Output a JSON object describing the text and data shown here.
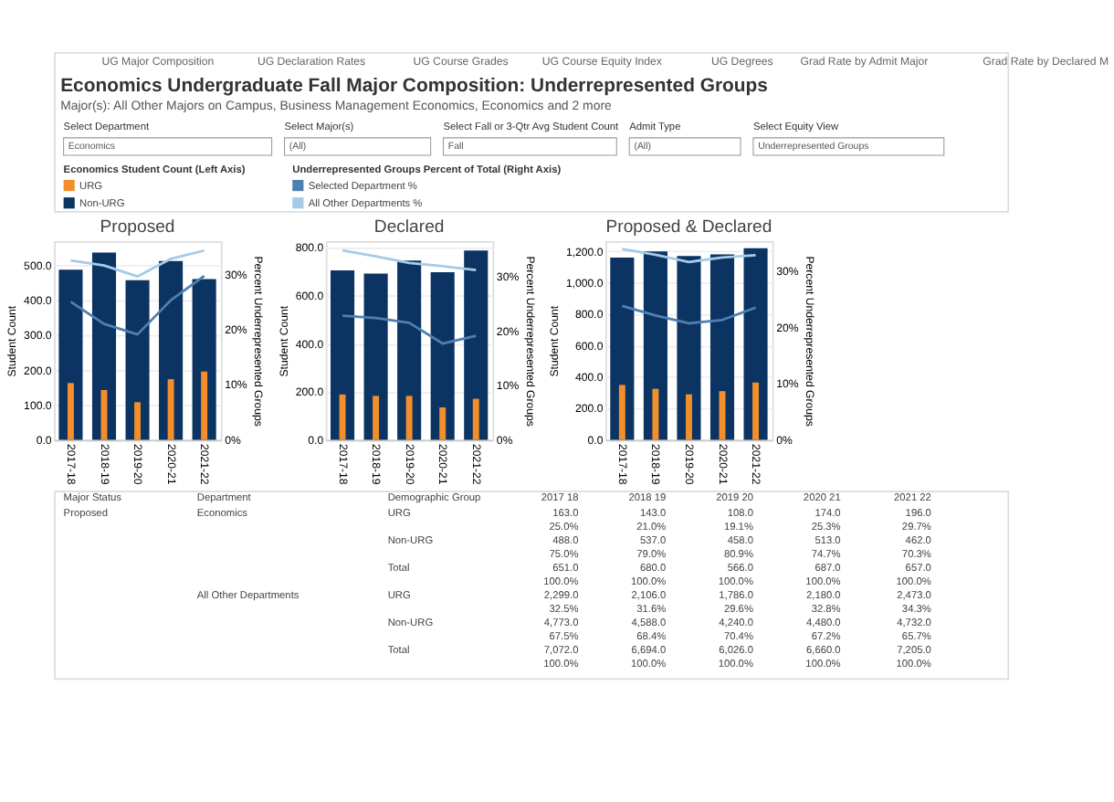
{
  "chart_data": [
    {
      "type": "other",
      "title": "Economics Undergraduate Fall Major Composition: Underrepresented Groups",
      "subtitle": "Major(s): All Other Majors on Campus, Business Management Economics, Economics and 2 more",
      "categories": [
        "UG Major Composition",
        "UG Declaration Rates",
        "UG Course Grades",
        "UG Course Equity Index",
        "UG Degrees",
        "Grad Rate by Admit Major",
        "Grad Rate by Declared M"
      ],
      "annotations": [
        "Select Department",
        "Economics",
        "Select Major(s)",
        "(All)",
        "Select Fall or 3-Qtr Avg Student Count",
        "Fall",
        "Admit Type",
        "(All)",
        "Select Equity View",
        "Underrepresented Groups"
      ]
    },
    {
      "type": "bar",
      "title": "Proposed",
      "legend": "top",
      "legend_title": "Economics Student Count (Left Axis)",
      "annotations": [
        "Underrepresented Groups Percent of Total (Right Axis)"
      ],
      "categories": [
        "2017-18",
        "2018-19",
        "2019-20",
        "2020-21",
        "2021-22"
      ],
      "ylabel": "Student Count",
      "y2label": "Percent Underrepresented Groups",
      "grid": "y",
      "ylim": [
        0,
        570
      ],
      "yticks": [
        {
          "value": 0,
          "label": "0.0"
        },
        {
          "value": 100,
          "label": "100.0"
        },
        {
          "value": 200,
          "label": "200.0"
        },
        {
          "value": 300,
          "label": "300.0"
        },
        {
          "value": 400,
          "label": "400.0"
        },
        {
          "value": 500,
          "label": "500.0"
        }
      ],
      "y2lim": [
        0,
        36
      ],
      "y2ticks": [
        {
          "value": 0,
          "label": "0%"
        },
        {
          "value": 10,
          "label": "10%"
        },
        {
          "value": 20,
          "label": "20%"
        },
        {
          "value": 30,
          "label": "30%"
        }
      ],
      "series": [
        {
          "name": "URG",
          "type": "bar",
          "color": "#f28e2b",
          "values": [
            163,
            143,
            108,
            174,
            196
          ]
        },
        {
          "name": "Non-URG",
          "type": "bar",
          "color": "#0b3463",
          "values": [
            488,
            537,
            458,
            513,
            461
          ]
        },
        {
          "name": "Selected Department %",
          "type": "line",
          "axis": "y2",
          "color": "#4f7fb0",
          "values": [
            25.0,
            21.0,
            19.1,
            25.3,
            29.7
          ]
        },
        {
          "name": "All Other Departments %",
          "type": "line",
          "axis": "y2",
          "color": "#a6cbe8",
          "values": [
            32.5,
            31.6,
            29.6,
            32.8,
            34.3
          ]
        }
      ]
    },
    {
      "type": "bar",
      "title": "Declared",
      "categories": [
        "2017-18",
        "2018-19",
        "2019-20",
        "2020-21",
        "2021-22"
      ],
      "ylabel": "Student Count",
      "y2label": "Percent Underrepresented Groups",
      "grid": "y",
      "ylim": [
        0,
        827
      ],
      "yticks": [
        {
          "value": 0,
          "label": "0.0"
        },
        {
          "value": 200,
          "label": "200.0"
        },
        {
          "value": 400,
          "label": "400.0"
        },
        {
          "value": 600,
          "label": "600.0"
        },
        {
          "value": 800,
          "label": "800.0"
        }
      ],
      "y2lim": [
        0,
        36.5
      ],
      "y2ticks": [
        {
          "value": 0,
          "label": "0%"
        },
        {
          "value": 10,
          "label": "10%"
        },
        {
          "value": 20,
          "label": "20%"
        },
        {
          "value": 30,
          "label": "30%"
        }
      ],
      "series": [
        {
          "type": "bar",
          "color": "#f28e2b",
          "values": [
            189,
            183,
            183,
            135,
            171
          ]
        },
        {
          "type": "bar",
          "color": "#0b3463",
          "values": [
            705,
            692,
            746,
            698,
            788
          ]
        },
        {
          "type": "line",
          "axis": "y2",
          "color": "#4f7fb0",
          "values": [
            22.8,
            22.4,
            21.5,
            17.7,
            19.1
          ]
        },
        {
          "type": "line",
          "axis": "y2",
          "color": "#a6cbe8",
          "values": [
            34.8,
            33.7,
            32.5,
            31.9,
            31.2
          ]
        }
      ]
    },
    {
      "type": "bar",
      "title": "Proposed & Declared",
      "categories": [
        "2017-18",
        "2018-19",
        "2019-20",
        "2020-21",
        "2021-22"
      ],
      "ylabel": "Student Count",
      "y2label": "Percent Underrepresented Groups",
      "grid": "y",
      "ylim": [
        0,
        1265
      ],
      "yticks": [
        {
          "value": 0,
          "label": "0.0"
        },
        {
          "value": 200,
          "label": "200.0"
        },
        {
          "value": 400,
          "label": "400.0"
        },
        {
          "value": 600,
          "label": "600.0"
        },
        {
          "value": 800,
          "label": "800.0"
        },
        {
          "value": 1000,
          "label": "1,000.0"
        },
        {
          "value": 1200,
          "label": "1,200.0"
        }
      ],
      "y2lim": [
        0,
        35.3
      ],
      "y2ticks": [
        {
          "value": 0,
          "label": "0%"
        },
        {
          "value": 10,
          "label": "10%"
        },
        {
          "value": 20,
          "label": "20%"
        },
        {
          "value": 30,
          "label": "30%"
        }
      ],
      "series": [
        {
          "type": "bar",
          "color": "#f28e2b",
          "values": [
            350,
            325,
            290,
            310,
            365
          ]
        },
        {
          "type": "bar",
          "color": "#0b3463",
          "values": [
            1160,
            1200,
            1170,
            1180,
            1220
          ]
        },
        {
          "type": "line",
          "axis": "y2",
          "color": "#4f7fb0",
          "values": [
            23.8,
            22.1,
            20.7,
            21.3,
            23.5
          ]
        },
        {
          "type": "line",
          "axis": "y2",
          "color": "#a6cbe8",
          "values": [
            33.9,
            32.9,
            31.6,
            32.4,
            32.8
          ]
        }
      ]
    },
    {
      "type": "other",
      "categories": [
        "Major Status",
        "Department",
        "Demographic Group",
        "2017 18",
        "2018 19",
        "2019 20",
        "2020 21",
        "2021 22"
      ],
      "annotations": [
        "Proposed",
        "Economics",
        "URG",
        "163.0",
        "143.0",
        "108.0",
        "174.0",
        "196.0",
        null,
        null,
        null,
        "25.0%",
        "21.0%",
        "19.1%",
        "25.3%",
        "29.7%",
        null,
        null,
        "Non-URG",
        "488.0",
        "537.0",
        "458.0",
        "513.0",
        "462.0",
        null,
        null,
        null,
        "75.0%",
        "79.0%",
        "80.9%",
        "74.7%",
        "70.3%",
        null,
        null,
        "Total",
        "651.0",
        "680.0",
        "566.0",
        "687.0",
        "657.0",
        null,
        null,
        null,
        "100.0%",
        "100.0%",
        "100.0%",
        "100.0%",
        "100.0%",
        null,
        "All Other Departments",
        "URG",
        "2,299.0",
        "2,106.0",
        "1,786.0",
        "2,180.0",
        "2,473.0",
        null,
        null,
        null,
        "32.5%",
        "31.6%",
        "29.6%",
        "32.8%",
        "34.3%",
        null,
        null,
        "Non-URG",
        "4,773.0",
        "4,588.0",
        "4,240.0",
        "4,480.0",
        "4,732.0",
        null,
        null,
        null,
        "67.5%",
        "68.4%",
        "70.4%",
        "67.2%",
        "65.7%",
        null,
        null,
        "Total",
        "7,072.0",
        "6,694.0",
        "6,026.0",
        "6,660.0",
        "7,205.0",
        null,
        null,
        null,
        "100.0%",
        "100.0%",
        "100.0%",
        "100.0%",
        "100.0%"
      ]
    }
  ]
}
